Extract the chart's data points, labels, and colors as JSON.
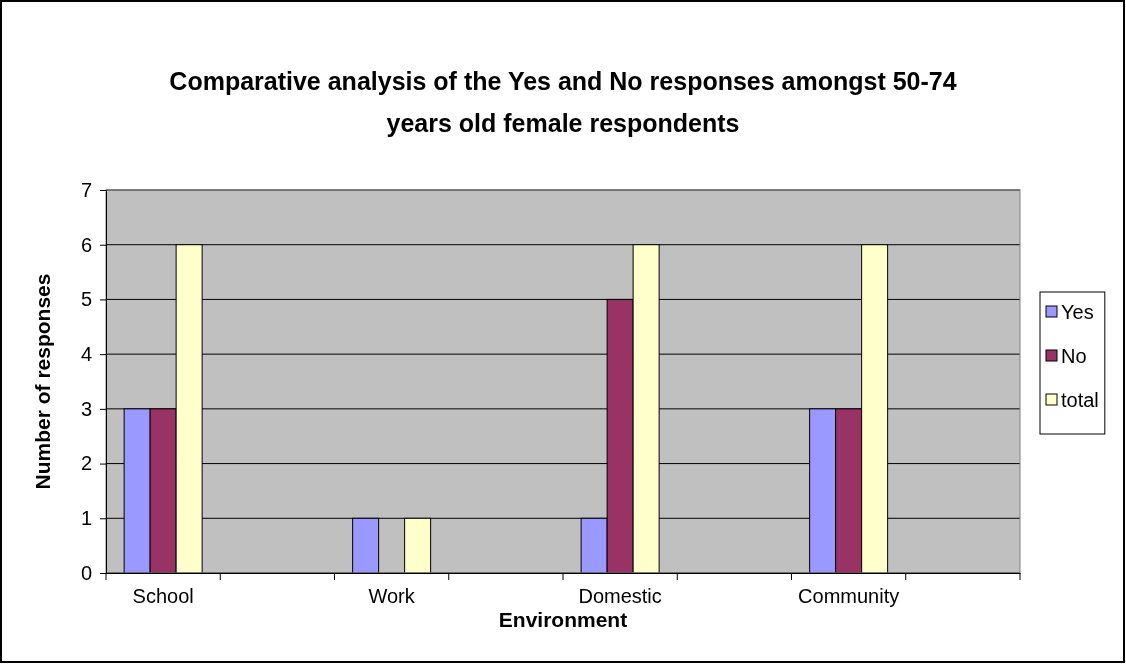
{
  "chart_data": {
    "type": "bar",
    "title": "Comparative analysis of the Yes and No responses amongst 50-74 years old female respondents",
    "xlabel": "Environment",
    "ylabel": "Number of responses",
    "categories": [
      "School",
      null,
      "Work",
      null,
      "Domestic",
      null,
      "Community",
      null
    ],
    "series": [
      {
        "name": "Yes",
        "color": "#9999ff",
        "values": [
          3,
          null,
          1,
          null,
          1,
          null,
          3,
          null
        ]
      },
      {
        "name": "No",
        "color": "#993366",
        "values": [
          3,
          null,
          0,
          null,
          5,
          null,
          3,
          null
        ]
      },
      {
        "name": "total",
        "color": "#ffffcc",
        "values": [
          6,
          null,
          1,
          null,
          6,
          null,
          6,
          null
        ]
      }
    ],
    "ylim": [
      0,
      7
    ],
    "yticks": [
      0,
      1,
      2,
      3,
      4,
      5,
      6,
      7
    ],
    "grid": "y",
    "legend": "right"
  }
}
